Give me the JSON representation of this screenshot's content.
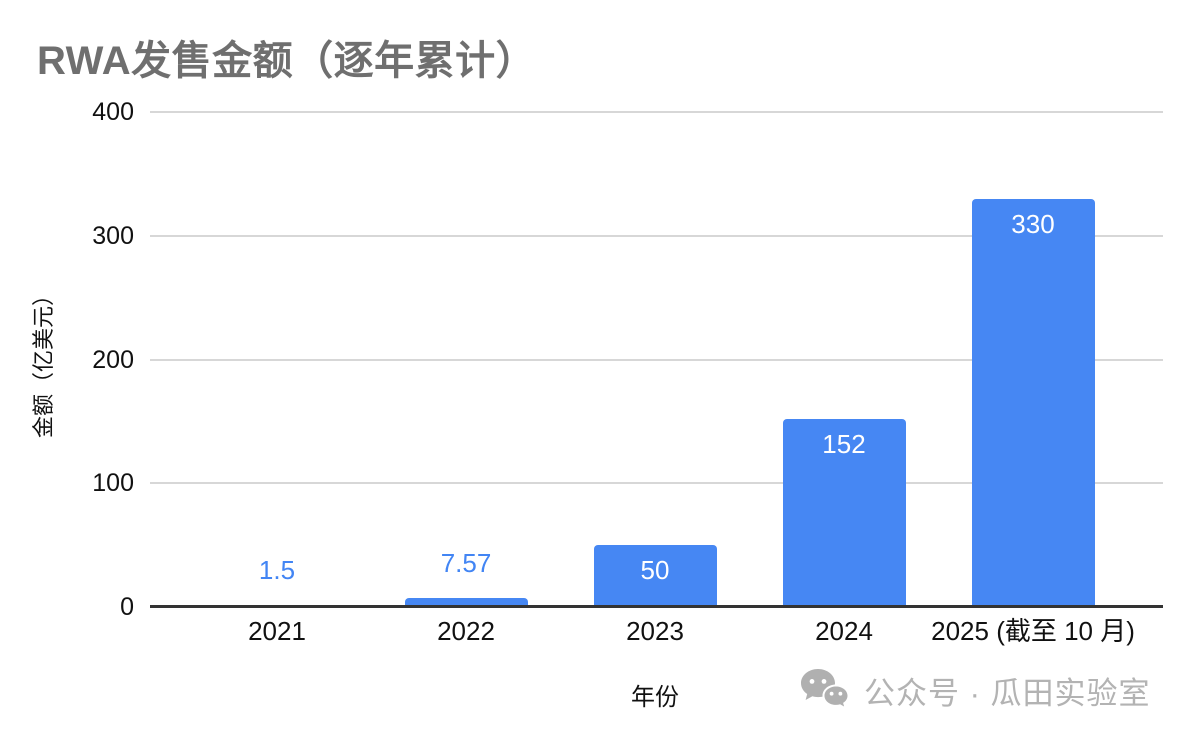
{
  "window": {
    "background": "#ffffff"
  },
  "chart_data": {
    "type": "bar",
    "title": "RWA发售金额（逐年累计）",
    "categories": [
      "2021",
      "2022",
      "2023",
      "2024",
      "2025 (截至 10 月)"
    ],
    "values": [
      1.5,
      7.57,
      50,
      152,
      330
    ],
    "data_labels": [
      "1.5",
      "7.57",
      "50",
      "152",
      "330"
    ],
    "label_placement": [
      "outside",
      "outside",
      "inside",
      "inside",
      "inside"
    ],
    "xlabel": "年份",
    "ylabel": "金额（亿美元）",
    "yticks": [
      0,
      100,
      200,
      300,
      400
    ],
    "ylim": [
      0,
      400
    ],
    "grid": true,
    "legend_position": "none",
    "colors": {
      "bar": "#4687f3",
      "label_outside": "#4285f4",
      "label_inside": "#ffffff",
      "gridline": "#d7d7d7",
      "axis_line": "#333333",
      "tick_text": "#111111",
      "title_text": "#6f6f6f"
    }
  },
  "watermark": {
    "icon": "wechat-icon",
    "text": "公众号 · 瓜田实验室",
    "color": "#b3b3b3"
  }
}
